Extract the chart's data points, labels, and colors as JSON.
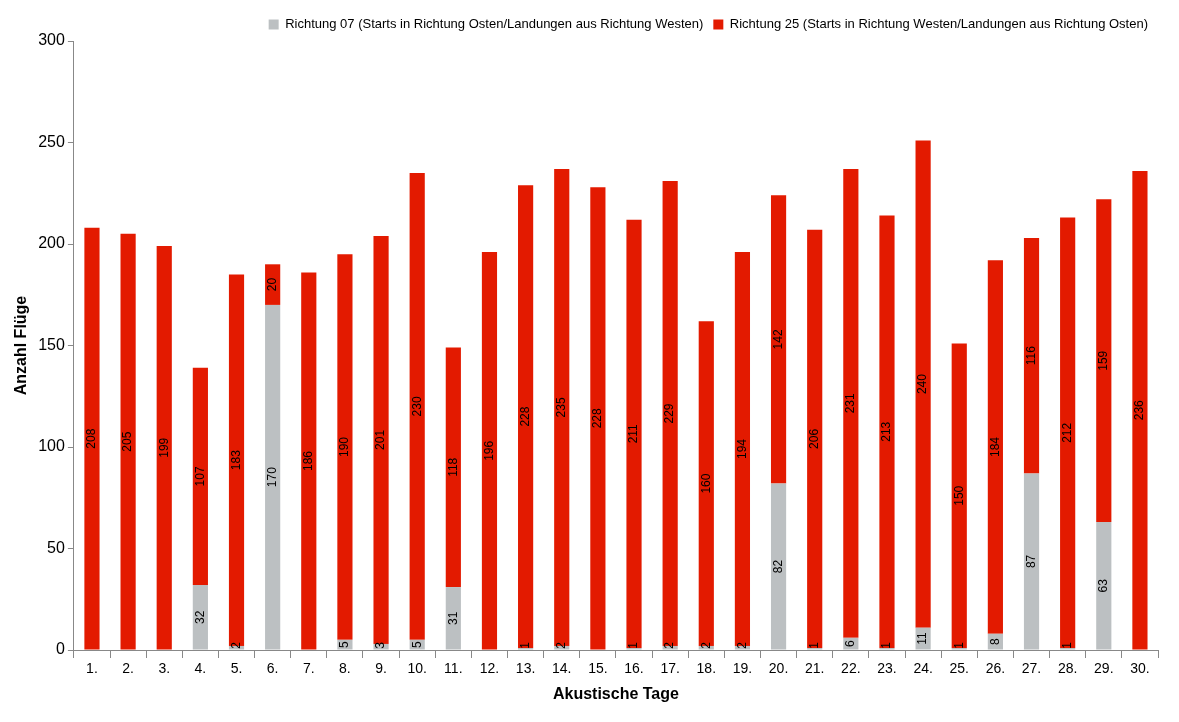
{
  "chart_data": {
    "type": "bar",
    "stacked": true,
    "xlabel": "Akustische Tage",
    "ylabel": "Anzahl Flüge",
    "categories": [
      "1.",
      "2.",
      "3.",
      "4.",
      "5.",
      "6.",
      "7.",
      "8.",
      "9.",
      "10.",
      "11.",
      "12.",
      "13.",
      "14.",
      "15.",
      "16.",
      "17.",
      "18.",
      "19.",
      "20.",
      "21.",
      "22.",
      "23.",
      "24.",
      "25.",
      "26.",
      "27.",
      "28.",
      "29.",
      "30."
    ],
    "series": [
      {
        "name": "Richtung 07 (Starts in Richtung Osten/Landungen aus Richtung Westen)",
        "color": "#bcc0c2",
        "values": [
          null,
          null,
          null,
          32,
          2,
          170,
          null,
          5,
          3,
          5,
          31,
          null,
          1,
          2,
          null,
          1,
          2,
          2,
          2,
          82,
          1,
          6,
          1,
          11,
          1,
          8,
          87,
          1,
          63,
          null
        ]
      },
      {
        "name": "Richtung 25 (Starts in Richtung Westen/Landungen aus Richtung Osten)",
        "color": "#e31a00",
        "values": [
          208,
          205,
          199,
          107,
          183,
          20,
          186,
          190,
          201,
          230,
          118,
          196,
          228,
          235,
          228,
          211,
          229,
          160,
          194,
          142,
          206,
          231,
          213,
          240,
          150,
          184,
          116,
          212,
          159,
          236
        ]
      }
    ],
    "ylim": [
      0,
      300
    ],
    "yticks": [
      0,
      50,
      100,
      150,
      200,
      250,
      300
    ],
    "grid": false,
    "legend": "top",
    "data_labels": true
  }
}
